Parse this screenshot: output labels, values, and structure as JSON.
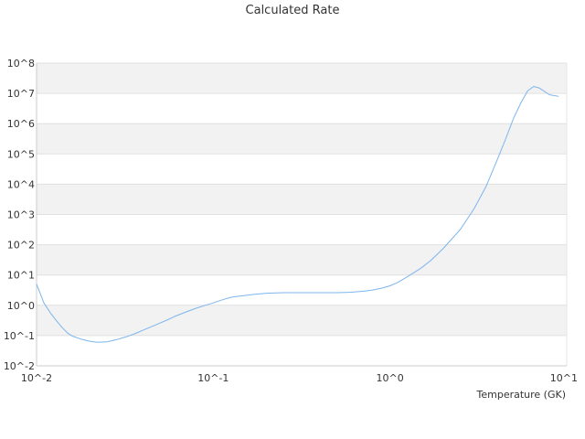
{
  "chart_data": {
    "type": "line",
    "title": "Calculated Rate",
    "xlabel": "Temperature (GK)",
    "ylabel": "",
    "x_scale": "log",
    "y_scale": "log",
    "xlim": [
      0.01,
      10
    ],
    "ylim": [
      0.01,
      100000000
    ],
    "x_ticks": [
      {
        "value": 0.01,
        "label": "10^-2"
      },
      {
        "value": 0.1,
        "label": "10^-1"
      },
      {
        "value": 1,
        "label": "10^0"
      },
      {
        "value": 10,
        "label": "10^1"
      }
    ],
    "y_ticks": [
      {
        "value": 0.01,
        "label": "10^-2"
      },
      {
        "value": 0.1,
        "label": "10^-1"
      },
      {
        "value": 1,
        "label": "10^0"
      },
      {
        "value": 10,
        "label": "10^1"
      },
      {
        "value": 100,
        "label": "10^2"
      },
      {
        "value": 1000,
        "label": "10^3"
      },
      {
        "value": 10000,
        "label": "10^4"
      },
      {
        "value": 100000,
        "label": "10^5"
      },
      {
        "value": 1000000,
        "label": "10^6"
      },
      {
        "value": 10000000,
        "label": "10^7"
      },
      {
        "value": 100000000,
        "label": "10^8"
      }
    ],
    "grid": "horizontal bands",
    "series": [
      {
        "color": "#7cb5ec",
        "x": [
          0.01,
          0.011,
          0.012,
          0.013,
          0.014,
          0.015,
          0.016,
          0.018,
          0.02,
          0.022,
          0.025,
          0.028,
          0.032,
          0.036,
          0.04,
          0.045,
          0.05,
          0.055,
          0.06,
          0.07,
          0.08,
          0.09,
          0.1,
          0.11,
          0.12,
          0.13,
          0.15,
          0.17,
          0.2,
          0.25,
          0.3,
          0.4,
          0.5,
          0.6,
          0.7,
          0.8,
          0.9,
          1.0,
          1.1,
          1.2,
          1.3,
          1.5,
          1.7,
          2.0,
          2.5,
          3.0,
          3.5,
          4.0,
          4.5,
          5.0,
          5.5,
          6.0,
          6.5,
          7.0,
          8.0,
          9.0
        ],
        "y": [
          5.0,
          1.2,
          0.55,
          0.3,
          0.18,
          0.12,
          0.095,
          0.075,
          0.065,
          0.06,
          0.062,
          0.072,
          0.09,
          0.115,
          0.15,
          0.2,
          0.26,
          0.33,
          0.42,
          0.6,
          0.8,
          1.0,
          1.2,
          1.45,
          1.7,
          1.9,
          2.1,
          2.3,
          2.5,
          2.6,
          2.6,
          2.6,
          2.6,
          2.7,
          2.9,
          3.2,
          3.7,
          4.4,
          5.6,
          7.5,
          10,
          17,
          30,
          75,
          320,
          1600,
          8500,
          55000,
          300000,
          1500000,
          4800000,
          12000000,
          17000000,
          15000000,
          9000000,
          8000000
        ]
      }
    ]
  }
}
